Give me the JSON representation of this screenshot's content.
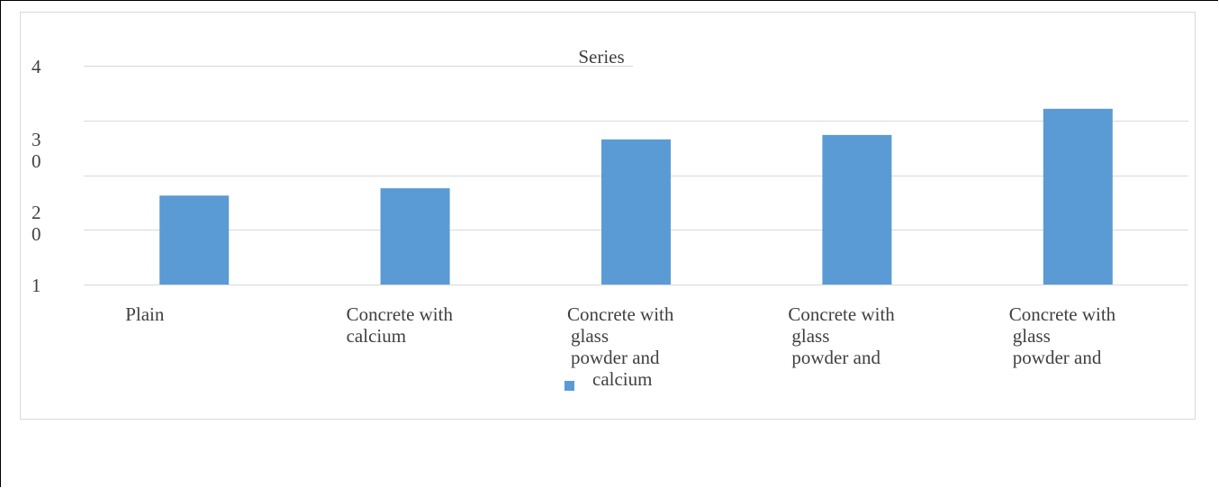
{
  "chart_data": {
    "type": "bar",
    "title": "Series",
    "categories": [
      [
        "Plain"
      ],
      [
        "Concrete with",
        "calcium"
      ],
      [
        "Concrete with",
        "glass",
        "powder and",
        "calcium"
      ],
      [
        "Concrete with",
        "glass",
        "powder and"
      ],
      [
        "Concrete with",
        "glass",
        "powder and"
      ]
    ],
    "values": [
      22.2,
      23.2,
      29.9,
      30.5,
      34.1
    ],
    "ylim": [
      10,
      40
    ],
    "y_ticks": [
      10,
      20,
      30,
      40
    ],
    "y_tick_labels": [
      {
        "value": 40,
        "lines": [
          "4"
        ]
      },
      {
        "value": 30,
        "lines": [
          "3",
          "0"
        ]
      },
      {
        "value": 20,
        "lines": [
          "2",
          "0"
        ]
      },
      {
        "value": 10,
        "lines": [
          "1"
        ]
      }
    ],
    "grid": true,
    "legend": {
      "position": "bottom",
      "entries": [
        {
          "name": "calcium",
          "color": "#5b9bd5"
        }
      ]
    },
    "bar_color": "#5b9bd5",
    "grid_color": "#d9d9d9"
  }
}
